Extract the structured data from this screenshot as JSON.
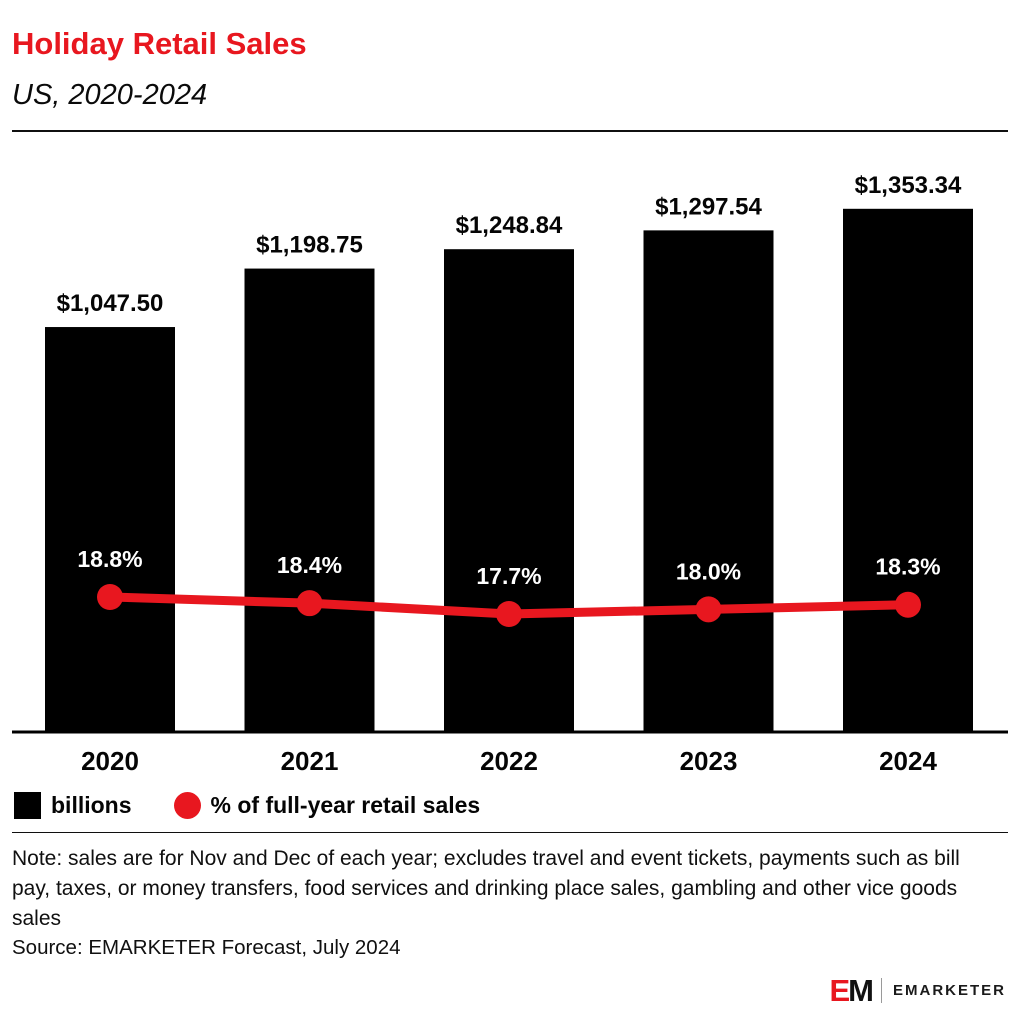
{
  "header": {
    "title": "Holiday Retail Sales",
    "subtitle": "US, 2020-2024"
  },
  "chart_data": {
    "type": "bar+line",
    "title": "Holiday Retail Sales",
    "subtitle": "US, 2020-2024",
    "categories": [
      "2020",
      "2021",
      "2022",
      "2023",
      "2024"
    ],
    "series": [
      {
        "name": "billions",
        "type": "bar",
        "color": "#000000",
        "values": [
          1047.5,
          1198.75,
          1248.84,
          1297.54,
          1353.34
        ],
        "labels": [
          "$1,047.50",
          "$1,198.75",
          "$1,248.84",
          "$1,297.54",
          "$1,353.34"
        ]
      },
      {
        "name": "% of full-year retail sales",
        "type": "line",
        "color": "#e8171f",
        "values": [
          18.8,
          18.4,
          17.7,
          18.0,
          18.3
        ],
        "labels": [
          "18.8%",
          "18.4%",
          "17.7%",
          "18.0%",
          "18.3%"
        ]
      }
    ],
    "ylim_bar": [
      0,
      1552
    ],
    "grid": false,
    "legend_position": "bottom"
  },
  "note": "Note: sales are for Nov and Dec of each year; excludes travel and event tickets, payments such as bill pay, taxes, or money transfers, food services and drinking place sales, gambling and other vice goods sales",
  "source": "Source: EMARKETER Forecast, July 2024",
  "logo": {
    "monogram_e": "E",
    "monogram_m": "M",
    "wordmark": "EMARKETER"
  },
  "colors": {
    "accent": "#e8171f",
    "bar": "#000000",
    "background": "#ffffff"
  }
}
